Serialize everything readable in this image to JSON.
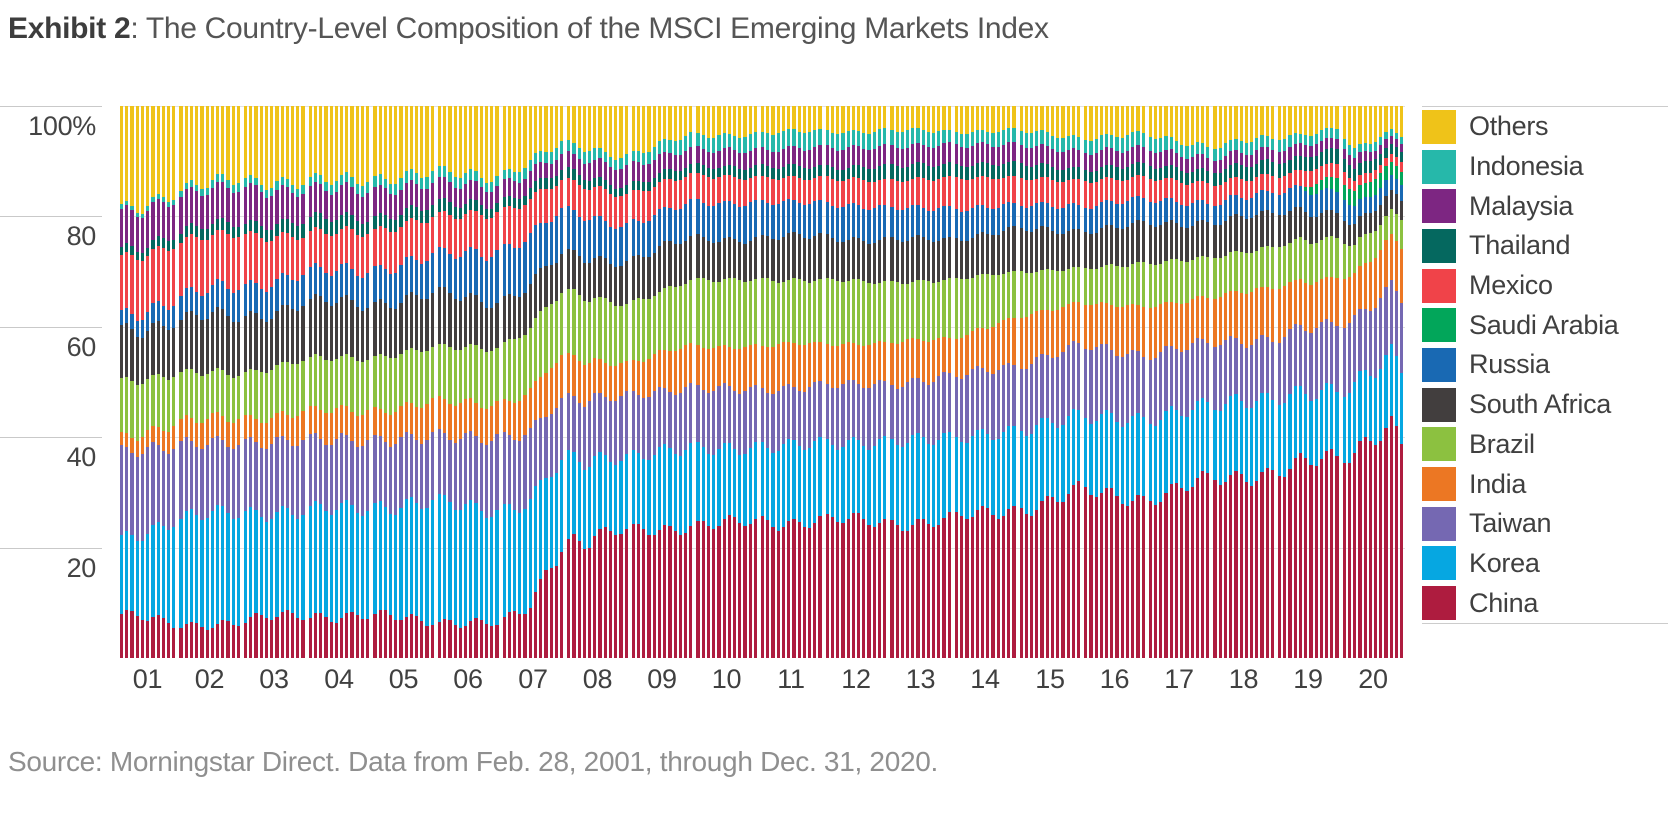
{
  "title": {
    "prefix": "Exhibit 2",
    "suffix": ": The Country-Level Composition of the MSCI Emerging Markets Index"
  },
  "source": "Source: Morningstar Direct. Data from Feb. 28, 2001, through Dec. 31, 2020.",
  "axes": {
    "y_ticks": [
      {
        "label": "100%",
        "value": 100
      },
      {
        "label": "80",
        "value": 80
      },
      {
        "label": "60",
        "value": 60
      },
      {
        "label": "40",
        "value": 40
      },
      {
        "label": "20",
        "value": 20
      }
    ],
    "x_ticks": [
      "01",
      "02",
      "03",
      "04",
      "05",
      "06",
      "07",
      "08",
      "09",
      "10",
      "11",
      "12",
      "13",
      "14",
      "15",
      "16",
      "17",
      "18",
      "19",
      "20"
    ]
  },
  "legend": {
    "items": [
      {
        "label": "Others",
        "color": "#EFC319"
      },
      {
        "label": "Indonesia",
        "color": "#26B8AA"
      },
      {
        "label": "Malaysia",
        "color": "#7D2682"
      },
      {
        "label": "Thailand",
        "color": "#05685F"
      },
      {
        "label": "Mexico",
        "color": "#F04349"
      },
      {
        "label": "Saudi Arabia",
        "color": "#02A65A"
      },
      {
        "label": "Russia",
        "color": "#1969B3"
      },
      {
        "label": "South Africa",
        "color": "#423E3E"
      },
      {
        "label": "Brazil",
        "color": "#8CC140"
      },
      {
        "label": "India",
        "color": "#EC7723"
      },
      {
        "label": "Taiwan",
        "color": "#7568B2"
      },
      {
        "label": "Korea",
        "color": "#06A7E1"
      },
      {
        "label": "China",
        "color": "#AE1C3F"
      }
    ]
  },
  "chart_data": {
    "type": "bar",
    "stacked": true,
    "unit": "percent of index weight",
    "title": "The Country-Level Composition of the MSCI Emerging Markets Index",
    "period": {
      "start": "2001-02",
      "end": "2020-12",
      "frequency": "monthly",
      "bar_count": 239
    },
    "ylim": [
      0,
      100
    ],
    "grid": true,
    "legend_position": "right",
    "stack_order_bottom_to_top": [
      "China",
      "Korea",
      "Taiwan",
      "India",
      "Brazil",
      "South Africa",
      "Russia",
      "Saudi Arabia",
      "Mexico",
      "Thailand",
      "Malaysia",
      "Indonesia",
      "Others"
    ],
    "colors": {
      "China": "#AE1C3F",
      "Korea": "#06A7E1",
      "Taiwan": "#7568B2",
      "India": "#EC7723",
      "Brazil": "#8CC140",
      "South Africa": "#423E3E",
      "Russia": "#1969B3",
      "Saudi Arabia": "#02A65A",
      "Mexico": "#F04349",
      "Thailand": "#05685F",
      "Malaysia": "#7D2682",
      "Indonesia": "#26B8AA",
      "Others": "#EFC319"
    },
    "interpolation_note": "Monthly bars interpolated between the keyframes below (values read off the chart, %).",
    "keyframes": [
      {
        "month": 0,
        "date": "2001-02",
        "weights": {
          "China": 8,
          "Korea": 13.5,
          "Taiwan": 16,
          "India": 2.5,
          "Brazil": 10,
          "South Africa": 9.5,
          "Russia": 2.5,
          "Saudi Arabia": 0,
          "Mexico": 10.5,
          "Thailand": 1.5,
          "Malaysia": 6.5,
          "Indonesia": 0.8,
          "Others": 18.7
        }
      },
      {
        "month": 10,
        "date": "2001-12",
        "weights": {
          "China": 6,
          "Korea": 19,
          "Taiwan": 13.5,
          "India": 4,
          "Brazil": 9,
          "South Africa": 9.5,
          "Russia": 4,
          "Saudi Arabia": 0,
          "Mexico": 10,
          "Thailand": 1.8,
          "Malaysia": 6.5,
          "Indonesia": 1,
          "Others": 15.7
        }
      },
      {
        "month": 22,
        "date": "2002-12",
        "weights": {
          "China": 6.5,
          "Korea": 20,
          "Taiwan": 12.5,
          "India": 4.5,
          "Brazil": 8,
          "South Africa": 10.5,
          "Russia": 5.5,
          "Saudi Arabia": 0,
          "Mexico": 9.5,
          "Thailand": 2,
          "Malaysia": 6.5,
          "Indonesia": 1.5,
          "Others": 13
        }
      },
      {
        "month": 34,
        "date": "2003-12",
        "weights": {
          "China": 8,
          "Korea": 18.5,
          "Taiwan": 13,
          "India": 5,
          "Brazil": 9.5,
          "South Africa": 10,
          "Russia": 5.5,
          "Saudi Arabia": 0,
          "Mexico": 7,
          "Thailand": 2.5,
          "Malaysia": 5.5,
          "Indonesia": 1.5,
          "Others": 14
        }
      },
      {
        "month": 46,
        "date": "2004-12",
        "weights": {
          "China": 7.5,
          "Korea": 20,
          "Taiwan": 12,
          "India": 5.5,
          "Brazil": 9.5,
          "South Africa": 10,
          "Russia": 6,
          "Saudi Arabia": 0,
          "Mexico": 7,
          "Thailand": 2.5,
          "Malaysia": 5,
          "Indonesia": 2,
          "Others": 13
        }
      },
      {
        "month": 58,
        "date": "2005-12",
        "weights": {
          "China": 7,
          "Korea": 21,
          "Taiwan": 12,
          "India": 6,
          "Brazil": 10,
          "South Africa": 9.5,
          "Russia": 7,
          "Saudi Arabia": 0,
          "Mexico": 7,
          "Thailand": 2.2,
          "Malaysia": 4,
          "Indonesia": 2,
          "Others": 12.3
        }
      },
      {
        "month": 70,
        "date": "2006-12",
        "weights": {
          "China": 6,
          "Korea": 21,
          "Taiwan": 13,
          "India": 6.5,
          "Brazil": 10,
          "South Africa": 8.5,
          "Russia": 9,
          "Saudi Arabia": 0,
          "Mexico": 7,
          "Thailand": 1.8,
          "Malaysia": 3,
          "Indonesia": 1.8,
          "Others": 12.4
        }
      },
      {
        "month": 76,
        "date": "2007-06",
        "weights": {
          "China": 9
        }
      },
      {
        "month": 78,
        "date": "2007-08",
        "weights": {
          "China": 13
        }
      },
      {
        "month": 80,
        "date": "2007-10",
        "weights": {
          "China": 19
        }
      },
      {
        "month": 82,
        "date": "2007-12",
        "weights": {
          "China": 21,
          "Korea": 15,
          "Taiwan": 11,
          "India": 7.5,
          "Brazil": 12,
          "South Africa": 6.5,
          "Russia": 8,
          "Saudi Arabia": 0,
          "Mexico": 5.5,
          "Thailand": 1.8,
          "Malaysia": 2.8,
          "Indonesia": 2,
          "Others": 6.9
        }
      },
      {
        "month": 94,
        "date": "2008-12",
        "weights": {
          "China": 23,
          "Korea": 13.5,
          "Taiwan": 11,
          "India": 6,
          "Brazil": 10.5,
          "South Africa": 8,
          "Russia": 6.5,
          "Saudi Arabia": 0,
          "Mexico": 5.5,
          "Thailand": 1.6,
          "Malaysia": 3.5,
          "Indonesia": 2,
          "Others": 8.9
        }
      },
      {
        "month": 106,
        "date": "2009-12",
        "weights": {
          "China": 24,
          "Korea": 14,
          "Taiwan": 11,
          "India": 7.5,
          "Brazil": 12,
          "South Africa": 7.5,
          "Russia": 6.5,
          "Saudi Arabia": 0,
          "Mexico": 5,
          "Thailand": 1.7,
          "Malaysia": 3,
          "Indonesia": 2.5,
          "Others": 5.3
        }
      },
      {
        "month": 118,
        "date": "2010-12",
        "weights": {
          "China": 24.5,
          "Korea": 13.5,
          "Taiwan": 10.5,
          "India": 8,
          "Brazil": 12,
          "South Africa": 7.5,
          "Russia": 6.5,
          "Saudi Arabia": 0,
          "Mexico": 4.5,
          "Thailand": 2,
          "Malaysia": 3,
          "Indonesia": 3,
          "Others": 5
        }
      },
      {
        "month": 130,
        "date": "2011-12",
        "weights": {
          "China": 25,
          "Korea": 14,
          "Taiwan": 10.5,
          "India": 7.5,
          "Brazil": 11.5,
          "South Africa": 8,
          "Russia": 6,
          "Saudi Arabia": 0,
          "Mexico": 4.5,
          "Thailand": 2,
          "Malaysia": 3.5,
          "Indonesia": 3,
          "Others": 4.5
        }
      },
      {
        "month": 142,
        "date": "2012-12",
        "weights": {
          "China": 24.5,
          "Korea": 14.5,
          "Taiwan": 10.5,
          "India": 7.5,
          "Brazil": 11,
          "South Africa": 7.5,
          "Russia": 6,
          "Saudi Arabia": 0,
          "Mexico": 5,
          "Thailand": 2.5,
          "Malaysia": 3.5,
          "Indonesia": 3,
          "Others": 4.5
        }
      },
      {
        "month": 154,
        "date": "2013-12",
        "weights": {
          "China": 25,
          "Korea": 15,
          "Taiwan": 11,
          "India": 7,
          "Brazil": 10.5,
          "South Africa": 7.5,
          "Russia": 5.5,
          "Saudi Arabia": 0,
          "Mexico": 5.5,
          "Thailand": 2.5,
          "Malaysia": 3.5,
          "Indonesia": 2.5,
          "Others": 4.5
        }
      },
      {
        "month": 166,
        "date": "2014-12",
        "weights": {
          "China": 27,
          "Korea": 14,
          "Taiwan": 12,
          "India": 8.5,
          "Brazil": 8.5,
          "South Africa": 7.5,
          "Russia": 4.5,
          "Saudi Arabia": 0,
          "Mexico": 5,
          "Thailand": 2.5,
          "Malaysia": 3.5,
          "Indonesia": 2.5,
          "Others": 4.5
        }
      },
      {
        "month": 178,
        "date": "2015-12",
        "weights": {
          "China": 30,
          "Korea": 14,
          "Taiwan": 12.5,
          "India": 8,
          "Brazil": 6,
          "South Africa": 7,
          "Russia": 4.5,
          "Saudi Arabia": 0,
          "Mexico": 4.5,
          "Thailand": 2.2,
          "Malaysia": 3.1,
          "Indonesia": 2.6,
          "Others": 5.6
        }
      },
      {
        "month": 190,
        "date": "2016-12",
        "weights": {
          "China": 29,
          "Korea": 14,
          "Taiwan": 12,
          "India": 8.5,
          "Brazil": 8,
          "South Africa": 7,
          "Russia": 4.5,
          "Saudi Arabia": 0,
          "Mexico": 4,
          "Thailand": 2.2,
          "Malaysia": 3,
          "Indonesia": 2.5,
          "Others": 5.3
        }
      },
      {
        "month": 202,
        "date": "2017-12",
        "weights": {
          "China": 32,
          "Korea": 14,
          "Taiwan": 11,
          "India": 8.5,
          "Brazil": 7,
          "South Africa": 6.5,
          "Russia": 3.5,
          "Saudi Arabia": 0,
          "Mexico": 3.5,
          "Thailand": 2.3,
          "Malaysia": 2.4,
          "Indonesia": 2.2,
          "Others": 7.1
        }
      },
      {
        "month": 214,
        "date": "2018-12",
        "weights": {
          "China": 34,
          "Korea": 13,
          "Taiwan": 11,
          "India": 9,
          "Brazil": 7.5,
          "South Africa": 6,
          "Russia": 3.8,
          "Saudi Arabia": 0,
          "Mexico": 3,
          "Thailand": 2.5,
          "Malaysia": 2.3,
          "Indonesia": 2,
          "Others": 5.9
        }
      },
      {
        "month": 219,
        "date": "2019-05",
        "weights": {
          "Saudi Arabia": 0
        }
      },
      {
        "month": 221,
        "date": "2019-07",
        "weights": {
          "Saudi Arabia": 1.6
        }
      },
      {
        "month": 226,
        "date": "2019-12",
        "weights": {
          "China": 36,
          "Korea": 12.5,
          "Taiwan": 12,
          "India": 8.5,
          "Brazil": 7,
          "South Africa": 4.7,
          "Russia": 4,
          "Saudi Arabia": 2.5,
          "Mexico": 2.4,
          "Thailand": 2.7,
          "Malaysia": 1.9,
          "Indonesia": 1.9,
          "Others": 3.9
        }
      },
      {
        "month": 229,
        "date": "2020-03",
        "weights": {
          "China": 37.5,
          "Korea": 12,
          "Taiwan": 12,
          "India": 7.8,
          "Brazil": 5.3,
          "South Africa": 3.6,
          "Russia": 3.2,
          "Saudi Arabia": 2.7,
          "Mexico": 1.9,
          "Thailand": 2.2,
          "Malaysia": 1.9,
          "Indonesia": 1.6,
          "Others": 8.3
        }
      },
      {
        "month": 233,
        "date": "2020-07",
        "weights": {
          "China": 41,
          "Korea": 11.8,
          "Taiwan": 12.2,
          "India": 8.2,
          "Brazil": 5,
          "South Africa": 3.5,
          "Russia": 3,
          "Saudi Arabia": 2.5,
          "Mexico": 1.6,
          "Thailand": 1.9,
          "Malaysia": 1.7,
          "Indonesia": 1.4,
          "Others": 6.2
        }
      },
      {
        "month": 236,
        "date": "2020-10",
        "weights": {
          "China": 43,
          "Korea": 12.3,
          "Taiwan": 12.5,
          "India": 8.6,
          "Brazil": 4.5,
          "South Africa": 3.3,
          "Russia": 2.8,
          "Saudi Arabia": 2.4,
          "Mexico": 1.5,
          "Thailand": 1.7,
          "Malaysia": 1.5,
          "Indonesia": 1.2,
          "Others": 4.7
        }
      },
      {
        "month": 238,
        "date": "2020-12",
        "weights": {
          "China": 39,
          "Korea": 13.5,
          "Taiwan": 12.8,
          "India": 9.2,
          "Brazil": 5.1,
          "South Africa": 3.5,
          "Russia": 3,
          "Saudi Arabia": 2.4,
          "Mexico": 1.7,
          "Thailand": 1.8,
          "Malaysia": 1.5,
          "Indonesia": 1.2,
          "Others": 5.3
        }
      }
    ]
  }
}
